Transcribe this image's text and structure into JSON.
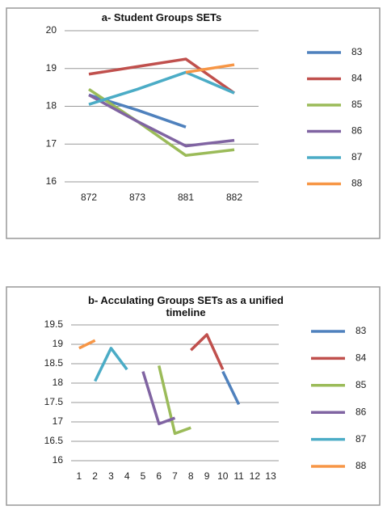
{
  "chart_data": [
    {
      "type": "line",
      "title": "a- Student Groups SETs",
      "categories": [
        "872",
        "873",
        "881",
        "882"
      ],
      "series": [
        {
          "name": "83",
          "color": "#4f81bd",
          "values": [
            18.3,
            17.9,
            17.45,
            null
          ]
        },
        {
          "name": "84",
          "color": "#c0504d",
          "values": [
            18.85,
            19.05,
            19.25,
            18.35
          ]
        },
        {
          "name": "85",
          "color": "#9bbb59",
          "values": [
            18.45,
            17.6,
            16.7,
            16.85
          ]
        },
        {
          "name": "86",
          "color": "#8064a2",
          "values": [
            18.3,
            17.6,
            16.95,
            17.1
          ]
        },
        {
          "name": "87",
          "color": "#4bacc6",
          "values": [
            18.05,
            18.45,
            18.9,
            18.35
          ]
        },
        {
          "name": "88",
          "color": "#f79646",
          "values": [
            null,
            null,
            18.9,
            19.1
          ]
        }
      ],
      "ylim": [
        16,
        20
      ],
      "yticks": [
        16,
        17,
        18,
        19,
        20
      ],
      "grid": true,
      "legend": "right"
    },
    {
      "type": "line",
      "title": "b- Acculating Groups SETs as a unified timeline",
      "categories": [
        "1",
        "2",
        "3",
        "4",
        "5",
        "6",
        "7",
        "8",
        "9",
        "10",
        "11",
        "12",
        "13"
      ],
      "series": [
        {
          "name": "83",
          "color": "#4f81bd",
          "values": [
            null,
            null,
            null,
            null,
            null,
            null,
            null,
            null,
            null,
            18.3,
            17.45,
            null,
            null
          ]
        },
        {
          "name": "84",
          "color": "#c0504d",
          "values": [
            null,
            null,
            null,
            null,
            null,
            null,
            null,
            18.85,
            19.25,
            18.35,
            null,
            null,
            null
          ]
        },
        {
          "name": "85",
          "color": "#9bbb59",
          "values": [
            null,
            null,
            null,
            null,
            null,
            18.45,
            16.7,
            16.85,
            null,
            null,
            null,
            null,
            null
          ]
        },
        {
          "name": "86",
          "color": "#8064a2",
          "values": [
            null,
            null,
            null,
            null,
            18.3,
            16.95,
            17.1,
            null,
            null,
            null,
            null,
            null,
            null
          ]
        },
        {
          "name": "87",
          "color": "#4bacc6",
          "values": [
            null,
            18.05,
            18.9,
            18.35,
            null,
            null,
            null,
            null,
            null,
            null,
            null,
            null,
            null
          ]
        },
        {
          "name": "88",
          "color": "#f79646",
          "values": [
            18.9,
            19.1,
            null,
            null,
            null,
            null,
            null,
            null,
            null,
            null,
            null,
            null,
            null
          ]
        }
      ],
      "ylim": [
        16,
        19.5
      ],
      "yticks": [
        16,
        16.5,
        17,
        17.5,
        18,
        18.5,
        19,
        19.5
      ],
      "grid": true,
      "legend": "right"
    }
  ]
}
